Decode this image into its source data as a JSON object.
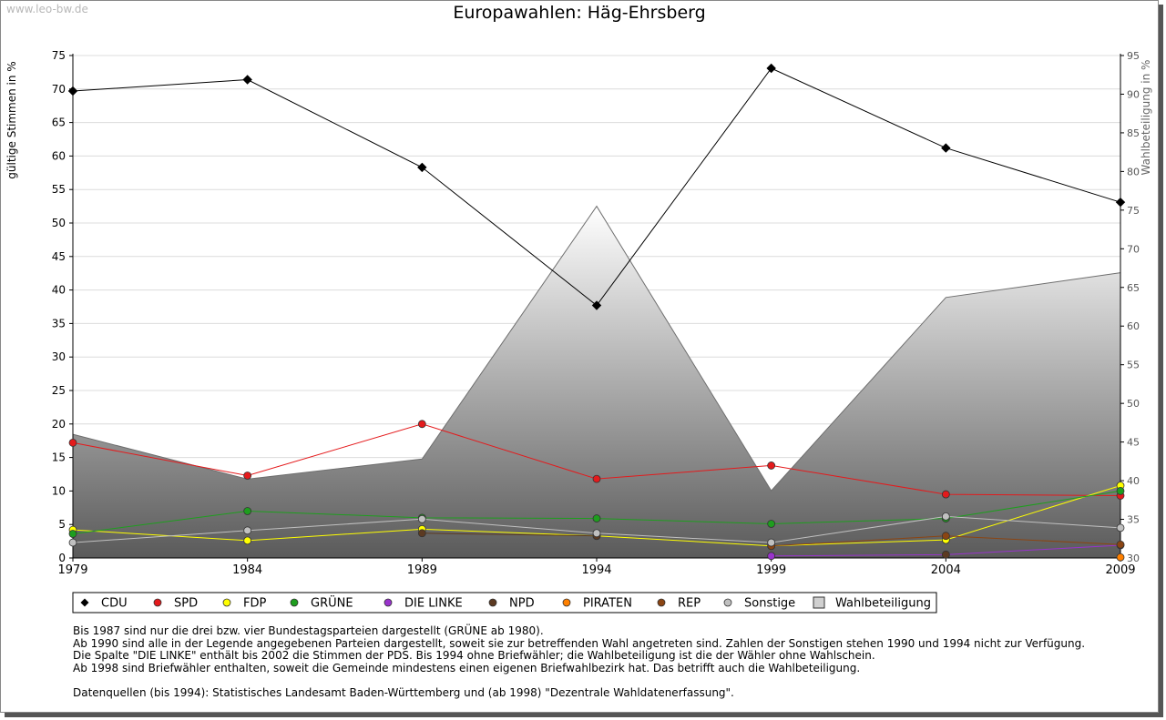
{
  "watermark": "www.leo-bw.de",
  "chart_data": {
    "type": "line",
    "title": "Europawahlen: Häg-Ehrsberg",
    "ylabel": "gültige Stimmen in %",
    "y2label": "Wahlbeteiligung in %",
    "ylim": [
      0,
      75
    ],
    "y2lim": [
      30,
      95
    ],
    "yticks": [
      0,
      5,
      10,
      15,
      20,
      25,
      30,
      35,
      40,
      45,
      50,
      55,
      60,
      65,
      70,
      75
    ],
    "y2ticks": [
      30,
      35,
      40,
      45,
      50,
      55,
      60,
      65,
      70,
      75,
      80,
      85,
      90,
      95
    ],
    "x": [
      1979,
      1984,
      1989,
      1994,
      1999,
      2004,
      2009
    ],
    "grid": true,
    "legend_position": "bottom",
    "series": [
      {
        "name": "CDU",
        "color": "#000000",
        "values": [
          69.7,
          71.4,
          58.3,
          37.7,
          73.1,
          61.2,
          53.1
        ]
      },
      {
        "name": "SPD",
        "color": "#e41a1c",
        "values": [
          17.2,
          12.3,
          20.0,
          11.8,
          13.8,
          9.5,
          9.3
        ]
      },
      {
        "name": "FDP",
        "color": "#ffff00",
        "values": [
          4.2,
          2.6,
          4.3,
          3.3,
          1.8,
          2.7,
          10.8
        ]
      },
      {
        "name": "GRÜNE",
        "color": "#1e9e1e",
        "values": [
          3.6,
          7.0,
          6.0,
          5.9,
          5.1,
          5.9,
          10.0
        ]
      },
      {
        "name": "DIE LINKE",
        "color": "#9933cc",
        "values": [
          null,
          null,
          null,
          null,
          0.3,
          0.5,
          1.9
        ]
      },
      {
        "name": "NPD",
        "color": "#5c3a21",
        "values": [
          null,
          null,
          3.7,
          3.3,
          null,
          0.5,
          null
        ]
      },
      {
        "name": "PIRATEN",
        "color": "#ff8000",
        "values": [
          null,
          null,
          null,
          null,
          null,
          null,
          0.1
        ]
      },
      {
        "name": "REP",
        "color": "#8b4513",
        "values": [
          null,
          null,
          null,
          null,
          1.8,
          3.3,
          2.0
        ]
      },
      {
        "name": "Sonstige",
        "color": "#c0c0c0",
        "values": [
          2.3,
          4.1,
          5.8,
          3.7,
          2.3,
          6.2,
          4.5
        ]
      }
    ],
    "turnout": {
      "name": "Wahlbeteiligung",
      "axis": "right",
      "type": "area",
      "values": [
        46.0,
        40.2,
        42.8,
        75.5,
        38.7,
        63.7,
        66.9
      ]
    }
  },
  "notes": [
    "Bis 1987 sind nur die drei bzw. vier Bundestagsparteien dargestellt (GRÜNE ab 1980).",
    "Ab 1990 sind alle in der Legende angegebenen Parteien dargestellt, soweit sie zur betreffenden Wahl angetreten sind. Zahlen der Sonstigen stehen 1990 und 1994 nicht zur Verfügung.",
    "Die Spalte \"DIE LINKE\" enthält bis 2002 die Stimmen der PDS. Bis 1994 ohne Briefwähler; die Wahlbeteiligung ist die der Wähler ohne Wahlschein.",
    "Ab 1998 sind Briefwähler enthalten, soweit die Gemeinde mindestens einen eigenen Briefwahlbezirk hat. Das betrifft auch die Wahlbeteiligung."
  ],
  "source": "Datenquellen (bis 1994): Statistisches Landesamt Baden-Württemberg und (ab 1998) \"Dezentrale Wahldatenerfassung\"."
}
